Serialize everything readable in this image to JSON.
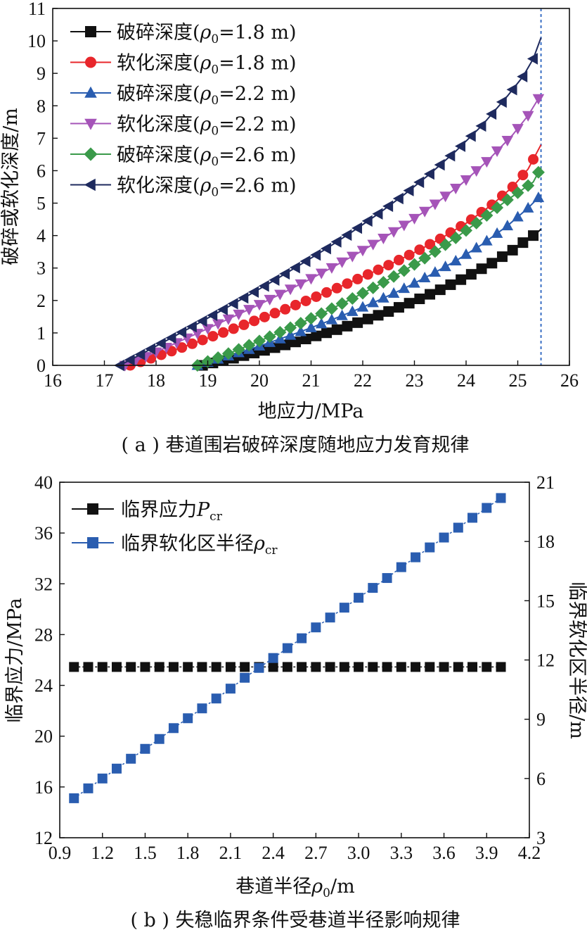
{
  "chart_data": [
    {
      "type": "line",
      "caption": "( a ) 巷道围岩破碎深度随地应力发育规律",
      "xlabel": "地应力/MPa",
      "ylabel": "破碎或软化深度/m",
      "xlim": [
        16,
        26
      ],
      "ylim": [
        0,
        11
      ],
      "xticks": [
        "16",
        "17",
        "18",
        "19",
        "20",
        "21",
        "22",
        "23",
        "24",
        "25",
        "26"
      ],
      "yticks": [
        "0",
        "1",
        "2",
        "3",
        "4",
        "5",
        "6",
        "7",
        "8",
        "9",
        "10",
        "11"
      ],
      "legend_position": "top-left",
      "reference_line": {
        "x": 25.45,
        "style": "dashed",
        "color": "#3a6fc4"
      },
      "series": [
        {
          "name": "破碎深度(ρ0=1.8 m)",
          "name_prefix": "破碎深度(",
          "rho": "ρ",
          "rho_sub": "0",
          "name_suffix": "=1.8 m)",
          "marker": "square",
          "color": "#111111",
          "x": [
            18.9,
            19.5,
            20.0,
            20.5,
            21.0,
            21.5,
            22.0,
            22.5,
            23.0,
            23.5,
            24.0,
            24.5,
            24.9,
            25.2,
            25.35,
            25.45
          ],
          "y": [
            0.0,
            0.22,
            0.42,
            0.63,
            0.86,
            1.1,
            1.37,
            1.66,
            1.98,
            2.33,
            2.72,
            3.15,
            3.55,
            3.9,
            4.05,
            4.2
          ]
        },
        {
          "name": "软化深度(ρ0=1.8 m)",
          "name_prefix": "软化深度(",
          "rho": "ρ",
          "rho_sub": "0",
          "name_suffix": "=1.8 m)",
          "marker": "circle",
          "color": "#e8262b",
          "x": [
            17.5,
            18.0,
            18.5,
            19.0,
            19.5,
            20.0,
            20.5,
            21.0,
            21.5,
            22.0,
            22.5,
            23.0,
            23.5,
            24.0,
            24.5,
            24.9,
            25.2,
            25.45
          ],
          "y": [
            0.0,
            0.27,
            0.55,
            0.84,
            1.13,
            1.43,
            1.73,
            2.05,
            2.38,
            2.73,
            3.09,
            3.48,
            3.9,
            4.38,
            4.95,
            5.5,
            6.05,
            6.8
          ]
        },
        {
          "name": "破碎深度(ρ0=2.2 m)",
          "name_prefix": "破碎深度(",
          "rho": "ρ",
          "rho_sub": "0",
          "name_suffix": "=2.2 m)",
          "marker": "triangle-up",
          "color": "#2a5db0",
          "x": [
            18.8,
            19.3,
            19.8,
            20.3,
            20.8,
            21.3,
            21.8,
            22.3,
            22.8,
            23.3,
            23.8,
            24.3,
            24.8,
            25.2,
            25.45
          ],
          "y": [
            0.0,
            0.24,
            0.49,
            0.76,
            1.04,
            1.34,
            1.66,
            2.0,
            2.37,
            2.78,
            3.22,
            3.72,
            4.3,
            4.85,
            5.25
          ]
        },
        {
          "name": "软化深度(ρ0=2.2 m)",
          "name_prefix": "软化深度(",
          "rho": "ρ",
          "rho_sub": "0",
          "name_suffix": "=2.2 m)",
          "marker": "triangle-down",
          "color": "#a554b8",
          "x": [
            17.4,
            17.9,
            18.4,
            18.9,
            19.4,
            19.9,
            20.4,
            20.9,
            21.4,
            21.9,
            22.4,
            22.9,
            23.4,
            23.9,
            24.4,
            24.9,
            25.2,
            25.45
          ],
          "y": [
            0.0,
            0.34,
            0.7,
            1.06,
            1.43,
            1.8,
            2.19,
            2.59,
            3.01,
            3.45,
            3.92,
            4.42,
            4.97,
            5.58,
            6.28,
            7.1,
            7.7,
            8.35
          ]
        },
        {
          "name": "破碎深度(ρ0=2.6 m)",
          "name_prefix": "破碎深度(",
          "rho": "ρ",
          "rho_sub": "0",
          "name_suffix": "=2.6 m)",
          "marker": "diamond",
          "color": "#3a9a4a",
          "x": [
            18.8,
            19.3,
            19.8,
            20.3,
            20.8,
            21.3,
            21.8,
            22.3,
            22.8,
            23.3,
            23.8,
            24.3,
            24.8,
            25.3,
            25.45
          ],
          "y": [
            0.0,
            0.3,
            0.62,
            0.95,
            1.3,
            1.67,
            2.06,
            2.47,
            2.92,
            3.4,
            3.93,
            4.5,
            5.1,
            5.65,
            6.1
          ]
        },
        {
          "name": "软化深度(ρ0=2.6 m)",
          "name_prefix": "软化深度(",
          "rho": "ρ",
          "rho_sub": "0",
          "name_suffix": "=2.6 m)",
          "marker": "triangle-left",
          "color": "#1e2a5e",
          "x": [
            17.3,
            17.8,
            18.3,
            18.8,
            19.3,
            19.8,
            20.3,
            20.8,
            21.3,
            21.8,
            22.3,
            22.8,
            23.3,
            23.8,
            24.3,
            24.8,
            25.1,
            25.3,
            25.45
          ],
          "y": [
            0.0,
            0.42,
            0.85,
            1.28,
            1.72,
            2.17,
            2.63,
            3.11,
            3.6,
            4.12,
            4.67,
            5.26,
            5.9,
            6.6,
            7.38,
            8.3,
            8.9,
            9.45,
            10.1
          ]
        }
      ]
    },
    {
      "type": "scatter",
      "caption": "( b ) 失稳临界条件受巷道半径影响规律",
      "xlabel": "巷道半径ρ0/m",
      "xlabel_prefix": "巷道半径",
      "xlabel_rho": "ρ",
      "xlabel_sub": "0",
      "xlabel_suffix": "/m",
      "ylabel_left": "临界应力/MPa",
      "ylabel_right": "临界软化区半径/m",
      "xlim": [
        0.9,
        4.2
      ],
      "ylim_left": [
        12,
        40
      ],
      "ylim_right": [
        3,
        21
      ],
      "xticks": [
        "0.9",
        "1.2",
        "1.5",
        "1.8",
        "2.1",
        "2.4",
        "2.7",
        "3.0",
        "3.3",
        "3.6",
        "3.9",
        "4.2"
      ],
      "yticks_left": [
        "12",
        "16",
        "20",
        "24",
        "28",
        "32",
        "36",
        "40"
      ],
      "yticks_right": [
        "3",
        "6",
        "9",
        "12",
        "15",
        "18",
        "21"
      ],
      "legend_position": "top-left",
      "x": [
        1.0,
        1.1,
        1.2,
        1.3,
        1.4,
        1.5,
        1.6,
        1.7,
        1.8,
        1.9,
        2.0,
        2.1,
        2.2,
        2.3,
        2.4,
        2.5,
        2.6,
        2.7,
        2.8,
        2.9,
        3.0,
        3.1,
        3.2,
        3.3,
        3.4,
        3.5,
        3.6,
        3.7,
        3.8,
        3.9,
        4.0
      ],
      "series": [
        {
          "name": "临界应力Pcr",
          "name_prefix": "临界应力",
          "sym": "P",
          "sub": "cr",
          "axis": "left",
          "marker": "square",
          "color": "#111111",
          "values": [
            25.45,
            25.45,
            25.45,
            25.45,
            25.45,
            25.45,
            25.45,
            25.45,
            25.45,
            25.45,
            25.45,
            25.45,
            25.45,
            25.45,
            25.45,
            25.45,
            25.45,
            25.45,
            25.45,
            25.45,
            25.45,
            25.45,
            25.45,
            25.45,
            25.45,
            25.45,
            25.45,
            25.45,
            25.45,
            25.45,
            25.45
          ]
        },
        {
          "name": "临界软化区半径ρcr",
          "name_prefix": "临界软化区半径",
          "sym": "ρ",
          "sub": "cr",
          "axis": "right",
          "marker": "square",
          "color": "#2a5db0",
          "values": [
            5.0,
            5.5,
            6.0,
            6.5,
            7.0,
            7.5,
            8.0,
            8.55,
            9.05,
            9.55,
            10.05,
            10.55,
            11.1,
            11.6,
            12.1,
            12.6,
            13.1,
            13.65,
            14.15,
            14.65,
            15.15,
            15.65,
            16.15,
            16.7,
            17.2,
            17.7,
            18.2,
            18.7,
            19.2,
            19.7,
            20.2
          ]
        }
      ]
    }
  ]
}
